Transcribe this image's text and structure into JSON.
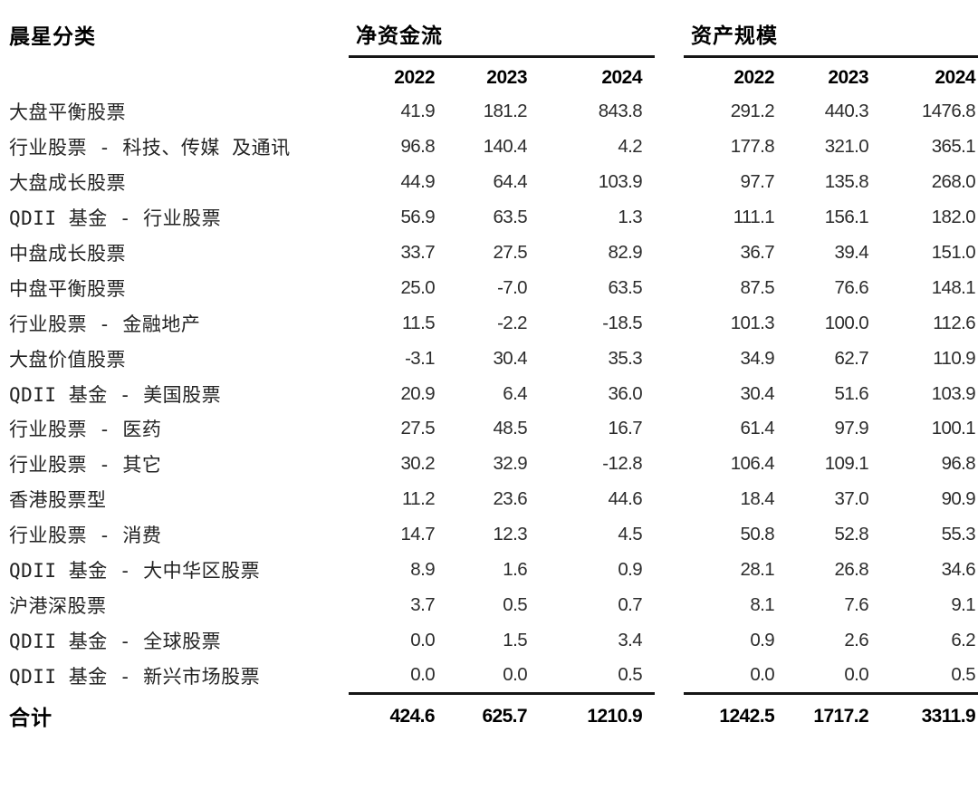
{
  "table": {
    "category_header": "晨星分类",
    "groups": [
      {
        "label": "净资金流",
        "years": [
          "2022",
          "2023",
          "2024"
        ]
      },
      {
        "label": "资产规模",
        "years": [
          "2022",
          "2023",
          "2024"
        ]
      }
    ],
    "rows": [
      {
        "category": "大盘平衡股票",
        "net_flow": [
          "41.9",
          "181.2",
          "843.8"
        ],
        "assets": [
          "291.2",
          "440.3",
          "1476.8"
        ]
      },
      {
        "category": "行业股票 - 科技、传媒 及通讯",
        "net_flow": [
          "96.8",
          "140.4",
          "4.2"
        ],
        "assets": [
          "177.8",
          "321.0",
          "365.1"
        ]
      },
      {
        "category": "大盘成长股票",
        "net_flow": [
          "44.9",
          "64.4",
          "103.9"
        ],
        "assets": [
          "97.7",
          "135.8",
          "268.0"
        ]
      },
      {
        "category": "QDII 基金 - 行业股票",
        "net_flow": [
          "56.9",
          "63.5",
          "1.3"
        ],
        "assets": [
          "111.1",
          "156.1",
          "182.0"
        ]
      },
      {
        "category": "中盘成长股票",
        "net_flow": [
          "33.7",
          "27.5",
          "82.9"
        ],
        "assets": [
          "36.7",
          "39.4",
          "151.0"
        ]
      },
      {
        "category": "中盘平衡股票",
        "net_flow": [
          "25.0",
          "-7.0",
          "63.5"
        ],
        "assets": [
          "87.5",
          "76.6",
          "148.1"
        ]
      },
      {
        "category": "行业股票 - 金融地产",
        "net_flow": [
          "11.5",
          "-2.2",
          "-18.5"
        ],
        "assets": [
          "101.3",
          "100.0",
          "112.6"
        ]
      },
      {
        "category": "大盘价值股票",
        "net_flow": [
          "-3.1",
          "30.4",
          "35.3"
        ],
        "assets": [
          "34.9",
          "62.7",
          "110.9"
        ]
      },
      {
        "category": "QDII 基金 - 美国股票",
        "net_flow": [
          "20.9",
          "6.4",
          "36.0"
        ],
        "assets": [
          "30.4",
          "51.6",
          "103.9"
        ]
      },
      {
        "category": "行业股票 - 医药",
        "net_flow": [
          "27.5",
          "48.5",
          "16.7"
        ],
        "assets": [
          "61.4",
          "97.9",
          "100.1"
        ]
      },
      {
        "category": "行业股票 - 其它",
        "net_flow": [
          "30.2",
          "32.9",
          "-12.8"
        ],
        "assets": [
          "106.4",
          "109.1",
          "96.8"
        ]
      },
      {
        "category": "香港股票型",
        "net_flow": [
          "11.2",
          "23.6",
          "44.6"
        ],
        "assets": [
          "18.4",
          "37.0",
          "90.9"
        ]
      },
      {
        "category": "行业股票 - 消费",
        "net_flow": [
          "14.7",
          "12.3",
          "4.5"
        ],
        "assets": [
          "50.8",
          "52.8",
          "55.3"
        ]
      },
      {
        "category": "QDII 基金 - 大中华区股票",
        "net_flow": [
          "8.9",
          "1.6",
          "0.9"
        ],
        "assets": [
          "28.1",
          "26.8",
          "34.6"
        ]
      },
      {
        "category": "沪港深股票",
        "net_flow": [
          "3.7",
          "0.5",
          "0.7"
        ],
        "assets": [
          "8.1",
          "7.6",
          "9.1"
        ]
      },
      {
        "category": "QDII 基金 - 全球股票",
        "net_flow": [
          "0.0",
          "1.5",
          "3.4"
        ],
        "assets": [
          "0.9",
          "2.6",
          "6.2"
        ]
      },
      {
        "category": "QDII 基金 - 新兴市场股票",
        "net_flow": [
          "0.0",
          "0.0",
          "0.5"
        ],
        "assets": [
          "0.0",
          "0.0",
          "0.5"
        ]
      }
    ],
    "total": {
      "label": "合计",
      "net_flow": [
        "424.6",
        "625.7",
        "1210.9"
      ],
      "assets": [
        "1242.5",
        "1717.2",
        "3311.9"
      ]
    }
  }
}
